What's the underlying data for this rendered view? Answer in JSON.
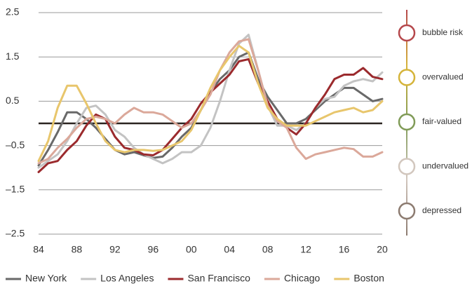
{
  "chart_data": {
    "type": "line",
    "x": [
      1984,
      1985,
      1986,
      1987,
      1988,
      1989,
      1990,
      1991,
      1992,
      1993,
      1994,
      1995,
      1996,
      1997,
      1998,
      1999,
      2000,
      2001,
      2002,
      2003,
      2004,
      2005,
      2006,
      2007,
      2008,
      2009,
      2010,
      2011,
      2012,
      2013,
      2014,
      2015,
      2016,
      2017,
      2018,
      2019,
      2020
    ],
    "xlim": [
      1984,
      2020
    ],
    "xticks": [
      {
        "value": 1984,
        "label": "84"
      },
      {
        "value": 1988,
        "label": "88"
      },
      {
        "value": 1992,
        "label": "92"
      },
      {
        "value": 1996,
        "label": "96"
      },
      {
        "value": 2000,
        "label": "00"
      },
      {
        "value": 2004,
        "label": "04"
      },
      {
        "value": 2008,
        "label": "08"
      },
      {
        "value": 2012,
        "label": "12"
      },
      {
        "value": 2016,
        "label": "16"
      },
      {
        "value": 2020,
        "label": "20"
      }
    ],
    "ylim": [
      -2.5,
      2.5
    ],
    "yticks": [
      2.5,
      1.5,
      0.5,
      {
        "value": -0.5,
        "label": "–0.5"
      },
      {
        "value": -1.5,
        "label": "–1.5"
      },
      {
        "value": -2.5,
        "label": "–2.5"
      }
    ],
    "grid": true,
    "reference_line": 0,
    "legend": "bottom",
    "series": [
      {
        "name": "New York",
        "color": "#696969",
        "values": [
          -0.95,
          -0.6,
          -0.2,
          0.25,
          0.25,
          0.1,
          -0.1,
          -0.35,
          -0.6,
          -0.7,
          -0.65,
          -0.72,
          -0.78,
          -0.75,
          -0.55,
          -0.3,
          -0.1,
          0.3,
          0.7,
          1.0,
          1.2,
          1.5,
          1.6,
          1.0,
          0.6,
          0.3,
          0.0,
          0.0,
          0.1,
          0.3,
          0.5,
          0.65,
          0.8,
          0.8,
          0.65,
          0.5,
          0.55
        ]
      },
      {
        "name": "Los Angeles",
        "color": "#c3c3c3",
        "values": [
          -1.0,
          -0.85,
          -0.7,
          -0.4,
          0.0,
          0.35,
          0.4,
          0.2,
          -0.15,
          -0.3,
          -0.55,
          -0.7,
          -0.8,
          -0.9,
          -0.8,
          -0.65,
          -0.65,
          -0.5,
          -0.1,
          0.5,
          1.2,
          1.8,
          2.0,
          1.2,
          0.4,
          -0.05,
          -0.05,
          -0.15,
          0.0,
          0.35,
          0.55,
          0.6,
          0.85,
          0.95,
          1.0,
          0.95,
          1.15
        ]
      },
      {
        "name": "San Francisco",
        "color": "#9b2a2d",
        "values": [
          -1.1,
          -0.9,
          -0.85,
          -0.6,
          -0.4,
          -0.05,
          0.2,
          0.1,
          -0.3,
          -0.55,
          -0.6,
          -0.7,
          -0.72,
          -0.6,
          -0.35,
          -0.1,
          0.1,
          0.45,
          0.7,
          0.9,
          1.1,
          1.4,
          1.45,
          0.9,
          0.5,
          0.1,
          -0.1,
          -0.25,
          0.0,
          0.35,
          0.65,
          1.0,
          1.1,
          1.1,
          1.25,
          1.05,
          1.0
        ]
      },
      {
        "name": "Chicago",
        "color": "#dba89a",
        "values": [
          -0.9,
          -0.8,
          -0.55,
          -0.35,
          -0.1,
          0.1,
          0.15,
          0.1,
          0.0,
          0.2,
          0.35,
          0.25,
          0.25,
          0.2,
          0.05,
          -0.1,
          0.0,
          0.3,
          0.65,
          1.2,
          1.6,
          1.85,
          1.9,
          1.2,
          0.4,
          0.05,
          -0.1,
          -0.55,
          -0.8,
          -0.7,
          -0.65,
          -0.6,
          -0.55,
          -0.58,
          -0.75,
          -0.75,
          -0.65
        ]
      },
      {
        "name": "Boston",
        "color": "#e8c66c",
        "values": [
          -0.85,
          -0.4,
          0.35,
          0.85,
          0.85,
          0.45,
          0.0,
          -0.4,
          -0.6,
          -0.65,
          -0.6,
          -0.6,
          -0.62,
          -0.6,
          -0.5,
          -0.4,
          -0.15,
          0.3,
          0.8,
          1.2,
          1.5,
          1.75,
          1.6,
          0.9,
          0.35,
          0.1,
          -0.05,
          -0.05,
          -0.05,
          0.05,
          0.15,
          0.25,
          0.3,
          0.35,
          0.25,
          0.3,
          0.5
        ]
      }
    ],
    "zones": [
      {
        "label": "bubble risk",
        "color": "#b5474b"
      },
      {
        "label": "overvalued",
        "color": "#d5b43a"
      },
      {
        "label": "fair-valued",
        "color": "#809b57"
      },
      {
        "label": "undervalued",
        "color": "#d2c7be"
      },
      {
        "label": "depressed",
        "color": "#8c7b70"
      }
    ]
  }
}
